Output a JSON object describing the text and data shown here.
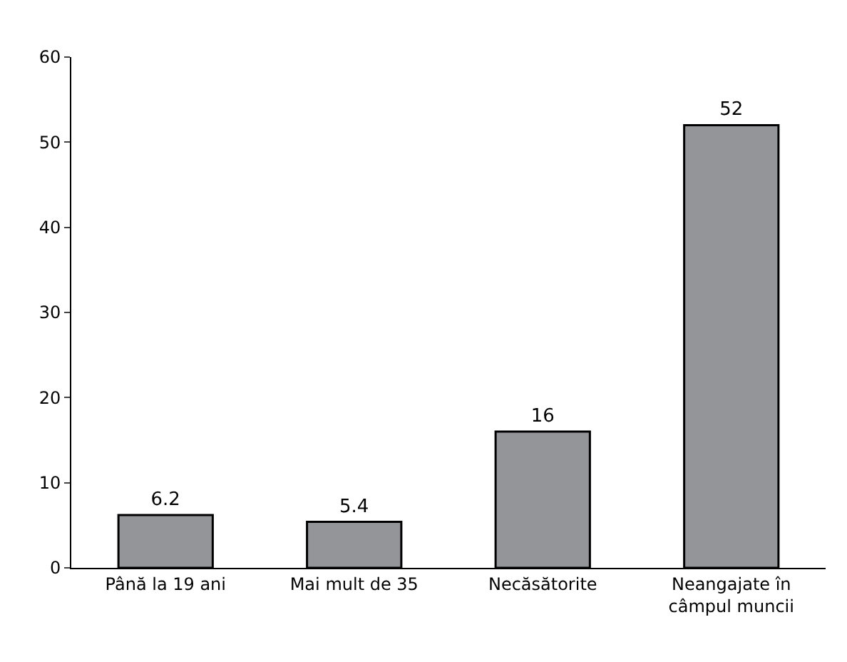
{
  "chart_data": {
    "type": "bar",
    "categories": [
      "Până la 19 ani",
      "Mai mult de 35",
      "Necăsătorite",
      "Neangajate în\ncâmpul muncii"
    ],
    "values": [
      6.2,
      5.4,
      16,
      52
    ],
    "color": "#939598",
    "ylim": [
      0,
      60
    ],
    "yticks": [
      0,
      10,
      20,
      30,
      40,
      50,
      60
    ],
    "data_labels": true
  }
}
